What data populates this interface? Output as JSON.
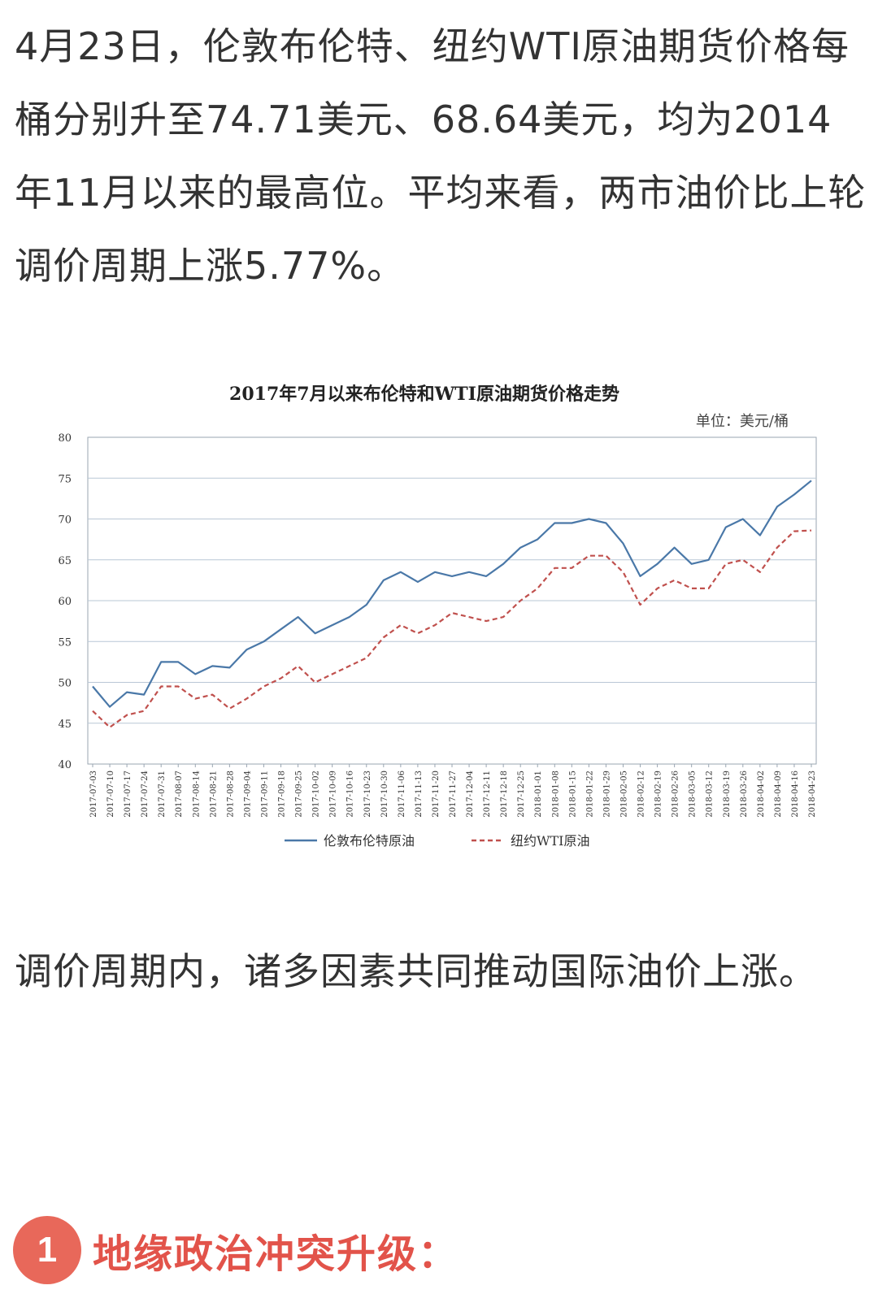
{
  "article": {
    "paragraph1": "4月23日，伦敦布伦特、纽约WTI原油期货价格每桶分别升至74.71美元、68.64美元，均为2014年11月以来的最高位。平均来看，两市油价比上轮调价周期上涨5.77%。",
    "paragraph2": "调价周期内，诸多因素共同推动国际油价上涨。",
    "section": {
      "number": "1",
      "title": "地缘政治冲突升级："
    }
  },
  "chart_data": {
    "type": "line",
    "title": "2017年7月以来布伦特和WTI原油期货价格走势",
    "unit": "单位：美元/桶",
    "ylim": [
      40,
      80
    ],
    "yticks": [
      40,
      45,
      50,
      55,
      60,
      65,
      70,
      75,
      80
    ],
    "grid": true,
    "legend_position": "bottom",
    "categories": [
      "2017-07-03",
      "2017-07-10",
      "2017-07-17",
      "2017-07-24",
      "2017-07-31",
      "2017-08-07",
      "2017-08-14",
      "2017-08-21",
      "2017-08-28",
      "2017-09-04",
      "2017-09-11",
      "2017-09-18",
      "2017-09-25",
      "2017-10-02",
      "2017-10-09",
      "2017-10-16",
      "2017-10-23",
      "2017-10-30",
      "2017-11-06",
      "2017-11-13",
      "2017-11-20",
      "2017-11-27",
      "2017-12-04",
      "2017-12-11",
      "2017-12-18",
      "2017-12-25",
      "2018-01-01",
      "2018-01-08",
      "2018-01-15",
      "2018-01-22",
      "2018-01-29",
      "2018-02-05",
      "2018-02-12",
      "2018-02-19",
      "2018-02-26",
      "2018-03-05",
      "2018-03-12",
      "2018-03-19",
      "2018-03-26",
      "2018-04-02",
      "2018-04-09",
      "2018-04-16",
      "2018-04-23"
    ],
    "series": [
      {
        "name": "伦敦布伦特原油",
        "color": "#4a78a8",
        "dash": "solid",
        "values": [
          49.5,
          47.0,
          48.8,
          48.5,
          52.5,
          52.5,
          51.0,
          52.0,
          51.8,
          54.0,
          55.0,
          56.5,
          58.0,
          56.0,
          57.0,
          58.0,
          59.5,
          62.5,
          63.5,
          62.3,
          63.5,
          63.0,
          63.5,
          63.0,
          64.5,
          66.5,
          67.5,
          69.5,
          69.5,
          70.0,
          69.5,
          67.0,
          63.0,
          64.5,
          66.5,
          64.5,
          65.0,
          69.0,
          70.0,
          68.0,
          71.5,
          73.0,
          74.7
        ]
      },
      {
        "name": "纽约WTI原油",
        "color": "#c0504d",
        "dash": "dashed",
        "values": [
          46.5,
          44.5,
          46.0,
          46.5,
          49.5,
          49.5,
          48.0,
          48.5,
          46.8,
          48.0,
          49.5,
          50.5,
          52.0,
          50.0,
          51.0,
          52.0,
          53.0,
          55.5,
          57.0,
          56.0,
          57.0,
          58.5,
          58.0,
          57.5,
          58.0,
          60.0,
          61.5,
          64.0,
          64.0,
          65.5,
          65.5,
          63.5,
          59.5,
          61.5,
          62.5,
          61.5,
          61.5,
          64.5,
          65.0,
          63.5,
          66.5,
          68.5,
          68.6
        ]
      }
    ]
  }
}
